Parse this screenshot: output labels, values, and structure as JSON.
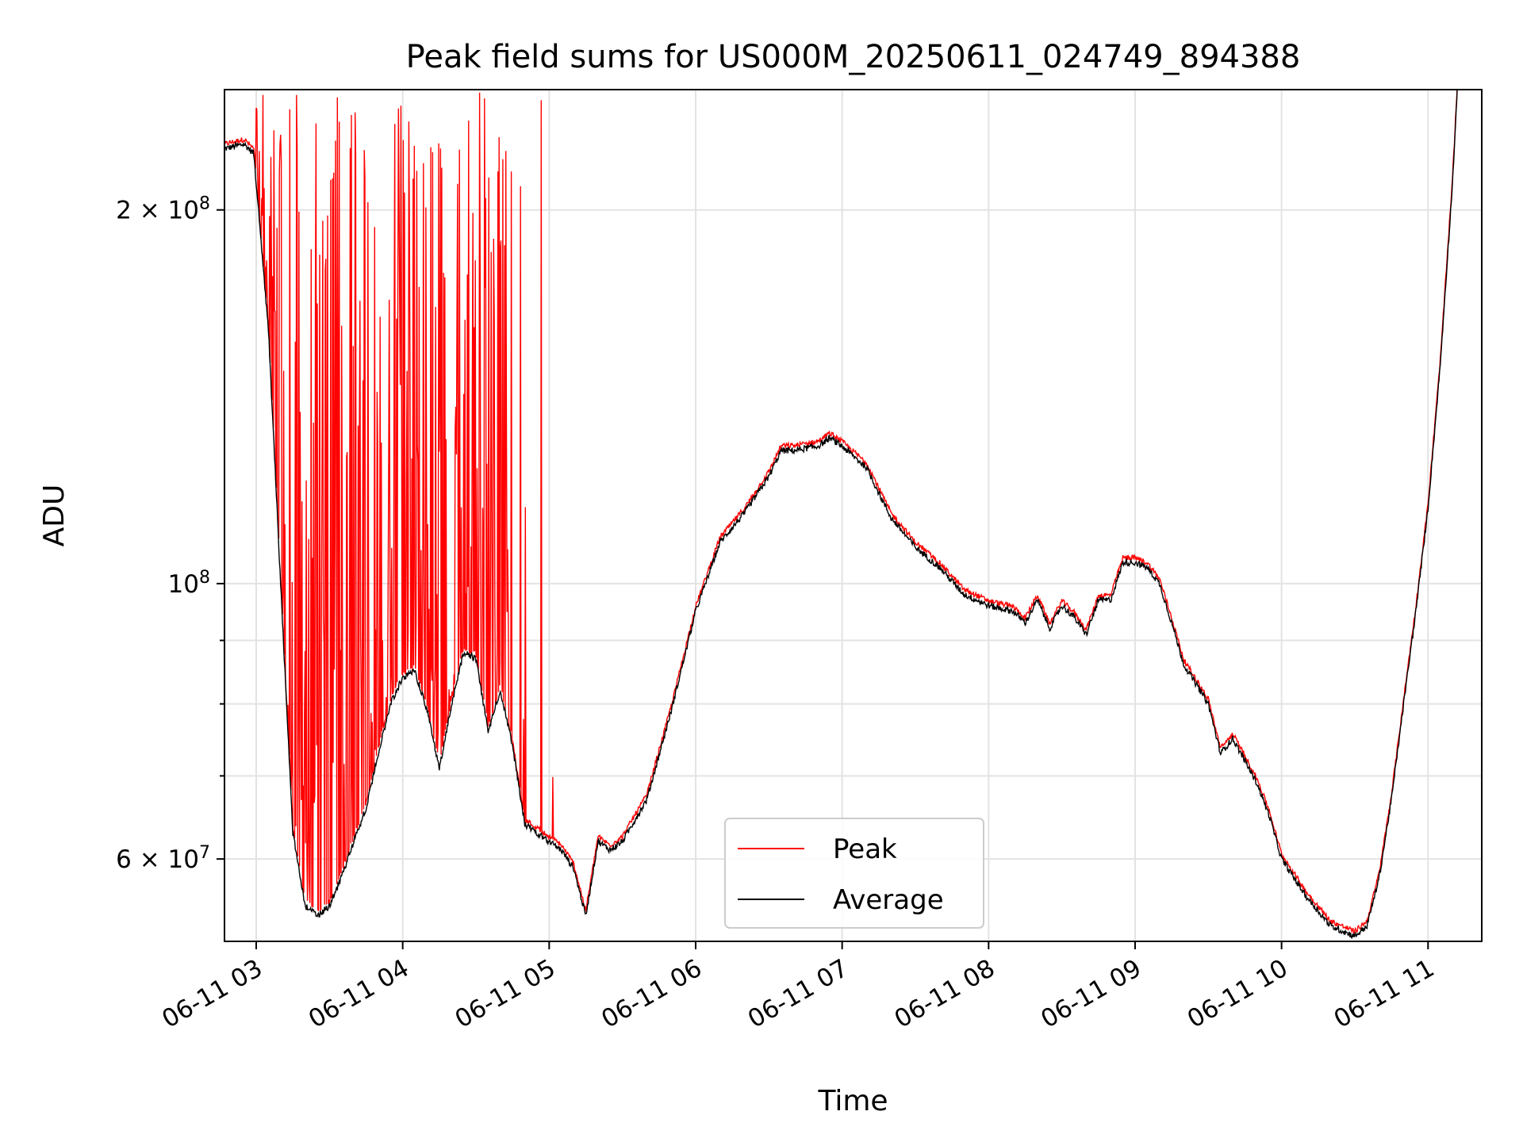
{
  "chart_data": {
    "type": "line",
    "title": "Peak field sums for US000M_20250611_024749_894388",
    "xlabel": "Time",
    "ylabel": "ADU",
    "y_scale": "log",
    "ylim": [
      51500000,
      250000000
    ],
    "xlim": [
      "06-11 02:47",
      "06-11 11:22"
    ],
    "grid": true,
    "legend_position": "bottom-center",
    "x_tick_labels": [
      "06-11 03",
      "06-11 04",
      "06-11 05",
      "06-11 06",
      "06-11 07",
      "06-11 08",
      "06-11 09",
      "06-11 10",
      "06-11 11"
    ],
    "y_tick_labels": [
      {
        "value": 200000000,
        "mantissa": "2",
        "exponent": "8"
      },
      {
        "value": 100000000,
        "mantissa": "",
        "exponent": "8"
      },
      {
        "value": 60000000,
        "mantissa": "6",
        "exponent": "7"
      }
    ],
    "y_minor_ticks": [
      70000000,
      80000000,
      90000000
    ],
    "series": [
      {
        "name": "Peak",
        "color": "#ff0000",
        "style": "noisy, frequent spikes up to ~2.5e8 between 03:00 and 05:00, otherwise tracks Average slightly above",
        "x": [
          "06-11 02:47",
          "06-11 02:59",
          "06-11 03:10",
          "06-11 03:20",
          "06-11 03:30",
          "06-11 03:40",
          "06-11 04:00",
          "06-11 04:20",
          "06-11 04:30",
          "06-11 04:40",
          "06-11 05:00",
          "06-11 05:20",
          "06-11 06:00",
          "06-11 06:30",
          "06-11 06:55",
          "06-11 07:30",
          "06-11 08:00",
          "06-11 08:30",
          "06-11 09:00",
          "06-11 09:30",
          "06-11 10:00",
          "06-11 10:35",
          "06-11 11:00",
          "06-11 11:12"
        ],
        "values": [
          225000000,
          222000000,
          80000000,
          58000000,
          60000000,
          70000000,
          86000000,
          80000000,
          89000000,
          84000000,
          63000000,
          62000000,
          111000000,
          128000000,
          131000000,
          107000000,
          96000000,
          92000000,
          104000000,
          86000000,
          74000000,
          54000000,
          115000000,
          250000000
        ]
      },
      {
        "name": "Average",
        "color": "#000000",
        "x": [
          "06-11 02:47",
          "06-11 02:55",
          "06-11 02:59",
          "06-11 03:05",
          "06-11 03:10",
          "06-11 03:15",
          "06-11 03:20",
          "06-11 03:25",
          "06-11 03:30",
          "06-11 03:35",
          "06-11 03:40",
          "06-11 03:45",
          "06-11 03:50",
          "06-11 03:55",
          "06-11 04:00",
          "06-11 04:05",
          "06-11 04:10",
          "06-11 04:15",
          "06-11 04:20",
          "06-11 04:25",
          "06-11 04:30",
          "06-11 04:35",
          "06-11 04:40",
          "06-11 04:45",
          "06-11 04:50",
          "06-11 04:55",
          "06-11 05:00",
          "06-11 05:05",
          "06-11 05:10",
          "06-11 05:15",
          "06-11 05:20",
          "06-11 05:25",
          "06-11 05:30",
          "06-11 05:40",
          "06-11 05:50",
          "06-11 06:00",
          "06-11 06:10",
          "06-11 06:20",
          "06-11 06:30",
          "06-11 06:35",
          "06-11 06:40",
          "06-11 06:50",
          "06-11 06:55",
          "06-11 07:00",
          "06-11 07:10",
          "06-11 07:20",
          "06-11 07:30",
          "06-11 07:40",
          "06-11 07:50",
          "06-11 08:00",
          "06-11 08:10",
          "06-11 08:15",
          "06-11 08:20",
          "06-11 08:25",
          "06-11 08:30",
          "06-11 08:35",
          "06-11 08:40",
          "06-11 08:45",
          "06-11 08:50",
          "06-11 08:55",
          "06-11 09:00",
          "06-11 09:05",
          "06-11 09:10",
          "06-11 09:15",
          "06-11 09:20",
          "06-11 09:25",
          "06-11 09:30",
          "06-11 09:35",
          "06-11 09:40",
          "06-11 09:45",
          "06-11 09:50",
          "06-11 09:55",
          "06-11 10:00",
          "06-11 10:10",
          "06-11 10:20",
          "06-11 10:30",
          "06-11 10:35",
          "06-11 10:40",
          "06-11 10:45",
          "06-11 10:50",
          "06-11 10:55",
          "06-11 11:00",
          "06-11 11:05",
          "06-11 11:10",
          "06-11 11:12"
        ],
        "values": [
          224000000,
          226000000,
          222000000,
          160000000,
          100000000,
          63000000,
          55000000,
          54000000,
          55000000,
          58000000,
          62000000,
          66000000,
          73000000,
          80000000,
          84000000,
          85000000,
          79000000,
          71000000,
          80000000,
          88000000,
          87000000,
          76000000,
          82000000,
          74000000,
          64000000,
          63000000,
          62000000,
          61000000,
          59000000,
          54000000,
          62000000,
          61000000,
          62000000,
          67000000,
          79000000,
          95000000,
          108000000,
          114000000,
          122000000,
          128000000,
          128000000,
          129000000,
          131000000,
          129000000,
          124000000,
          113000000,
          107000000,
          103000000,
          98000000,
          96000000,
          95000000,
          93000000,
          97000000,
          92000000,
          96000000,
          94000000,
          91000000,
          97000000,
          97000000,
          104000000,
          104000000,
          103000000,
          100000000,
          93000000,
          86000000,
          83000000,
          80000000,
          73000000,
          75000000,
          72000000,
          69000000,
          65000000,
          60000000,
          56000000,
          53000000,
          52000000,
          53000000,
          58000000,
          67000000,
          80000000,
          95000000,
          115000000,
          150000000,
          210000000,
          250000000
        ]
      }
    ],
    "annotations": []
  }
}
